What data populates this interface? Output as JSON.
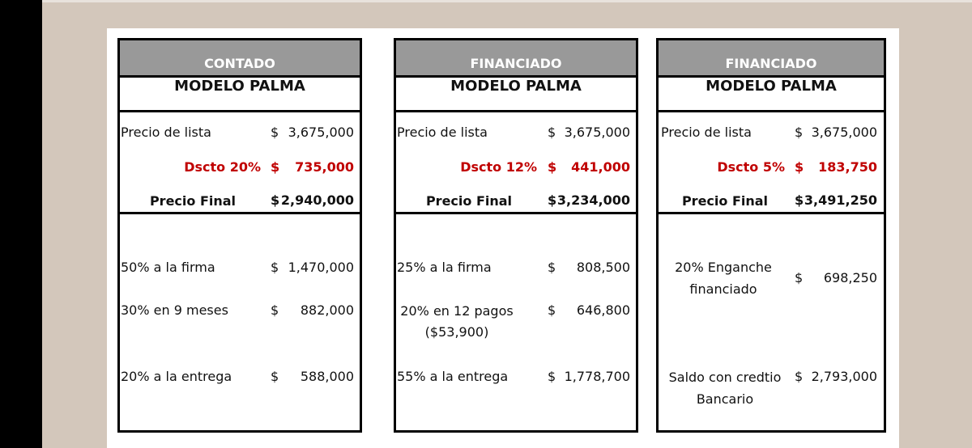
{
  "colors": {
    "header_bg": "#999999",
    "discount": "#c00000"
  },
  "tables": [
    {
      "header": "CONTADO",
      "model": "MODELO PALMA",
      "list_label": "Precio de lista",
      "list_value": "3,675,000",
      "discount_label": "Dscto 20%",
      "discount_value": "735,000",
      "final_label": "Precio Final",
      "final_value": "2,940,000",
      "payments": [
        {
          "label": "50% a la firma",
          "value": "1,470,000"
        },
        {
          "label": "30% en 9 meses",
          "value": "882,000"
        },
        {
          "label": "20% a la entrega",
          "value": "588,000"
        }
      ]
    },
    {
      "header": "FINANCIADO",
      "model": "MODELO PALMA",
      "list_label": "Precio de lista",
      "list_value": "3,675,000",
      "discount_label": "Dscto 12%",
      "discount_value": "441,000",
      "final_label": "Precio Final",
      "final_value": "3,234,000",
      "payments": [
        {
          "label": "25% a la firma",
          "value": "808,500"
        },
        {
          "label": "20% en 12 pagos",
          "label2": "($53,900)",
          "value": "646,800"
        },
        {
          "label": "55% a la entrega",
          "value": "1,778,700"
        }
      ]
    },
    {
      "header": "FINANCIADO",
      "model": "MODELO PALMA",
      "list_label": "Precio de lista",
      "list_value": "3,675,000",
      "discount_label": "Dscto 5%",
      "discount_value": "183,750",
      "final_label": "Precio Final",
      "final_value": "3,491,250",
      "payments": [
        {
          "label": "20% Enganche",
          "label2": "financiado",
          "value": "698,250"
        },
        {
          "label": "Saldo con credtio",
          "label2": "Bancario",
          "value": "2,793,000"
        }
      ]
    }
  ],
  "currency": "$"
}
